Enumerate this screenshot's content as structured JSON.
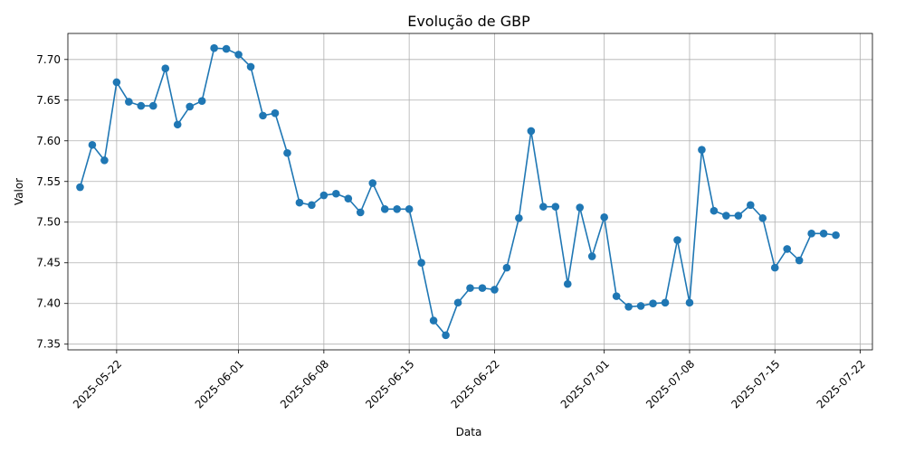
{
  "chart_data": {
    "type": "line",
    "title": "Evolução de GBP",
    "xlabel": "Data",
    "ylabel": "Valor",
    "x_start": "2025-05-19",
    "x": [
      "2025-05-19",
      "2025-05-20",
      "2025-05-21",
      "2025-05-22",
      "2025-05-23",
      "2025-05-24",
      "2025-05-25",
      "2025-05-26",
      "2025-05-27",
      "2025-05-28",
      "2025-05-29",
      "2025-05-30",
      "2025-05-31",
      "2025-06-01",
      "2025-06-02",
      "2025-06-03",
      "2025-06-04",
      "2025-06-05",
      "2025-06-06",
      "2025-06-07",
      "2025-06-08",
      "2025-06-09",
      "2025-06-10",
      "2025-06-11",
      "2025-06-12",
      "2025-06-13",
      "2025-06-14",
      "2025-06-15",
      "2025-06-16",
      "2025-06-17",
      "2025-06-18",
      "2025-06-19",
      "2025-06-20",
      "2025-06-21",
      "2025-06-22",
      "2025-06-23",
      "2025-06-24",
      "2025-06-25",
      "2025-06-26",
      "2025-06-27",
      "2025-06-28",
      "2025-06-29",
      "2025-06-30",
      "2025-07-01",
      "2025-07-02",
      "2025-07-03",
      "2025-07-04",
      "2025-07-05",
      "2025-07-06",
      "2025-07-07",
      "2025-07-08",
      "2025-07-09",
      "2025-07-10",
      "2025-07-11",
      "2025-07-12",
      "2025-07-13",
      "2025-07-14",
      "2025-07-15",
      "2025-07-16",
      "2025-07-17",
      "2025-07-18",
      "2025-07-19",
      "2025-07-20"
    ],
    "series": [
      {
        "values": [
          7.543,
          7.595,
          7.576,
          7.672,
          7.648,
          7.643,
          7.643,
          7.689,
          7.62,
          7.642,
          7.649,
          7.714,
          7.713,
          7.706,
          7.691,
          7.631,
          7.634,
          7.585,
          7.524,
          7.521,
          7.533,
          7.535,
          7.529,
          7.512,
          7.548,
          7.516,
          7.516,
          7.516,
          7.45,
          7.379,
          7.361,
          7.401,
          7.419,
          7.419,
          7.417,
          7.444,
          7.505,
          7.612,
          7.519,
          7.519,
          7.424,
          7.518,
          7.458,
          7.506,
          7.409,
          7.396,
          7.397,
          7.4,
          7.401,
          7.478,
          7.401,
          7.589,
          7.514,
          7.508,
          7.508,
          7.521,
          7.505,
          7.444,
          7.467,
          7.453,
          7.486,
          7.486,
          7.484
        ],
        "color": "#1f77b4"
      }
    ],
    "x_ticks": [
      "2025-05-22",
      "2025-06-01",
      "2025-06-08",
      "2025-06-15",
      "2025-06-22",
      "2025-07-01",
      "2025-07-08",
      "2025-07-15",
      "2025-07-22"
    ],
    "y_ticks": [
      7.35,
      7.4,
      7.45,
      7.5,
      7.55,
      7.6,
      7.65,
      7.7
    ],
    "xlim": [
      "2025-05-18",
      "2025-07-23"
    ],
    "ylim": [
      7.343,
      7.732
    ],
    "grid": true,
    "marker": "circle"
  }
}
